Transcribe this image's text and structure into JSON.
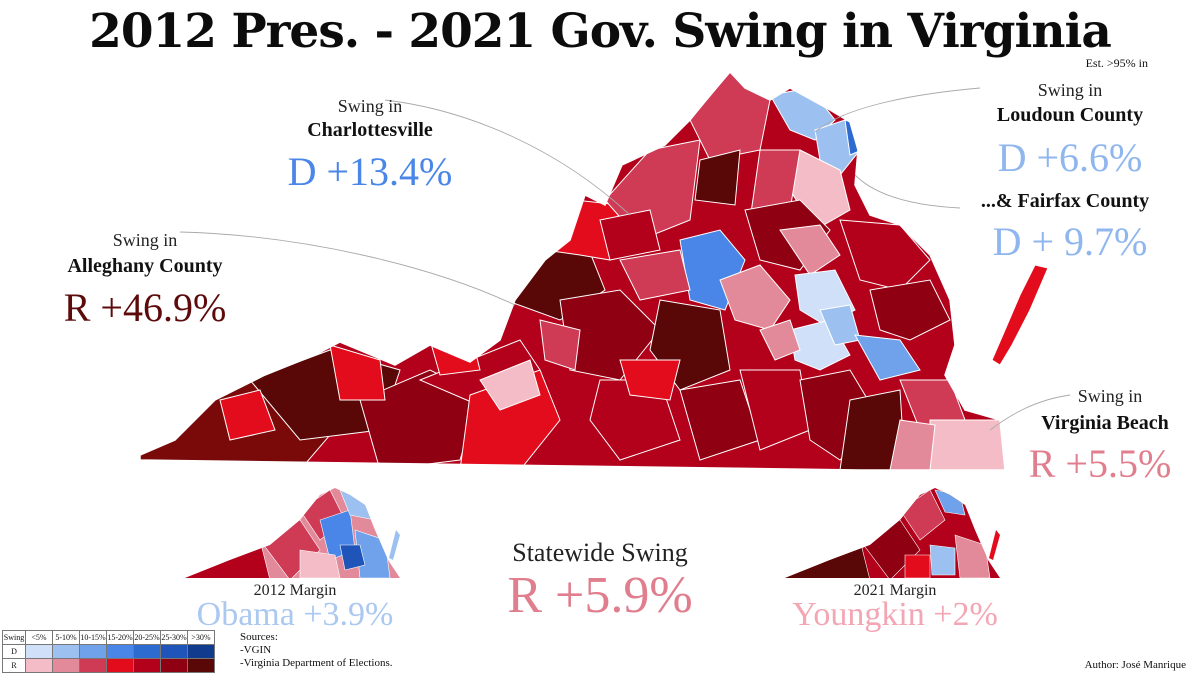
{
  "title": "2012 Pres. - 2021 Gov. Swing in Virginia",
  "estimate_note": "Est. >95% in",
  "callouts": {
    "charlottesville": {
      "prefix": "Swing in",
      "place": "Charlottesville",
      "value": "D +13.4%",
      "color": "#4a86e8"
    },
    "alleghany": {
      "prefix": "Swing in",
      "place": "Alleghany County",
      "value": "R +46.9%",
      "color": "#5c0a0a"
    },
    "loudoun": {
      "prefix": "Swing in",
      "place": "Loudoun County",
      "value": "D +6.6%",
      "color": "#8fb6ee"
    },
    "fairfax": {
      "place": "...& Fairfax County",
      "value": "D + 9.7%",
      "color": "#8fb6ee"
    },
    "virginia_beach": {
      "prefix": "Swing in",
      "place": "Virginia Beach",
      "value": "R +5.5%",
      "color": "#e07e8e"
    }
  },
  "statewide": {
    "label": "Statewide Swing",
    "value": "R +5.9%",
    "color": "#e07e8e"
  },
  "inset_2012": {
    "label": "2012 Margin",
    "value": "Obama +3.9%",
    "color": "#aac8f0"
  },
  "inset_2021": {
    "label": "2021 Margin",
    "value": "Youngkin +2%",
    "color": "#f3a6b3"
  },
  "legend": {
    "header": "Swing",
    "bins": [
      "<5%",
      "5-10%",
      "10-15%",
      "15-20%",
      "20-25%",
      "25-30%",
      ">30%"
    ],
    "rows": [
      {
        "label": "D",
        "colors": [
          "#cfe0f8",
          "#9cc1f0",
          "#6fa2ea",
          "#4a86e8",
          "#2e6bd0",
          "#1f55b8",
          "#113b8c"
        ]
      },
      {
        "label": "R",
        "colors": [
          "#f4bcc6",
          "#e38a9a",
          "#cf3a55",
          "#e30c1c",
          "#b3001b",
          "#8e0012",
          "#5a0707"
        ]
      }
    ]
  },
  "sources": {
    "heading": "Sources:",
    "items": [
      "-VGIN",
      "-Virginia Department of Elections."
    ]
  },
  "author": "Author: José Manrique"
}
